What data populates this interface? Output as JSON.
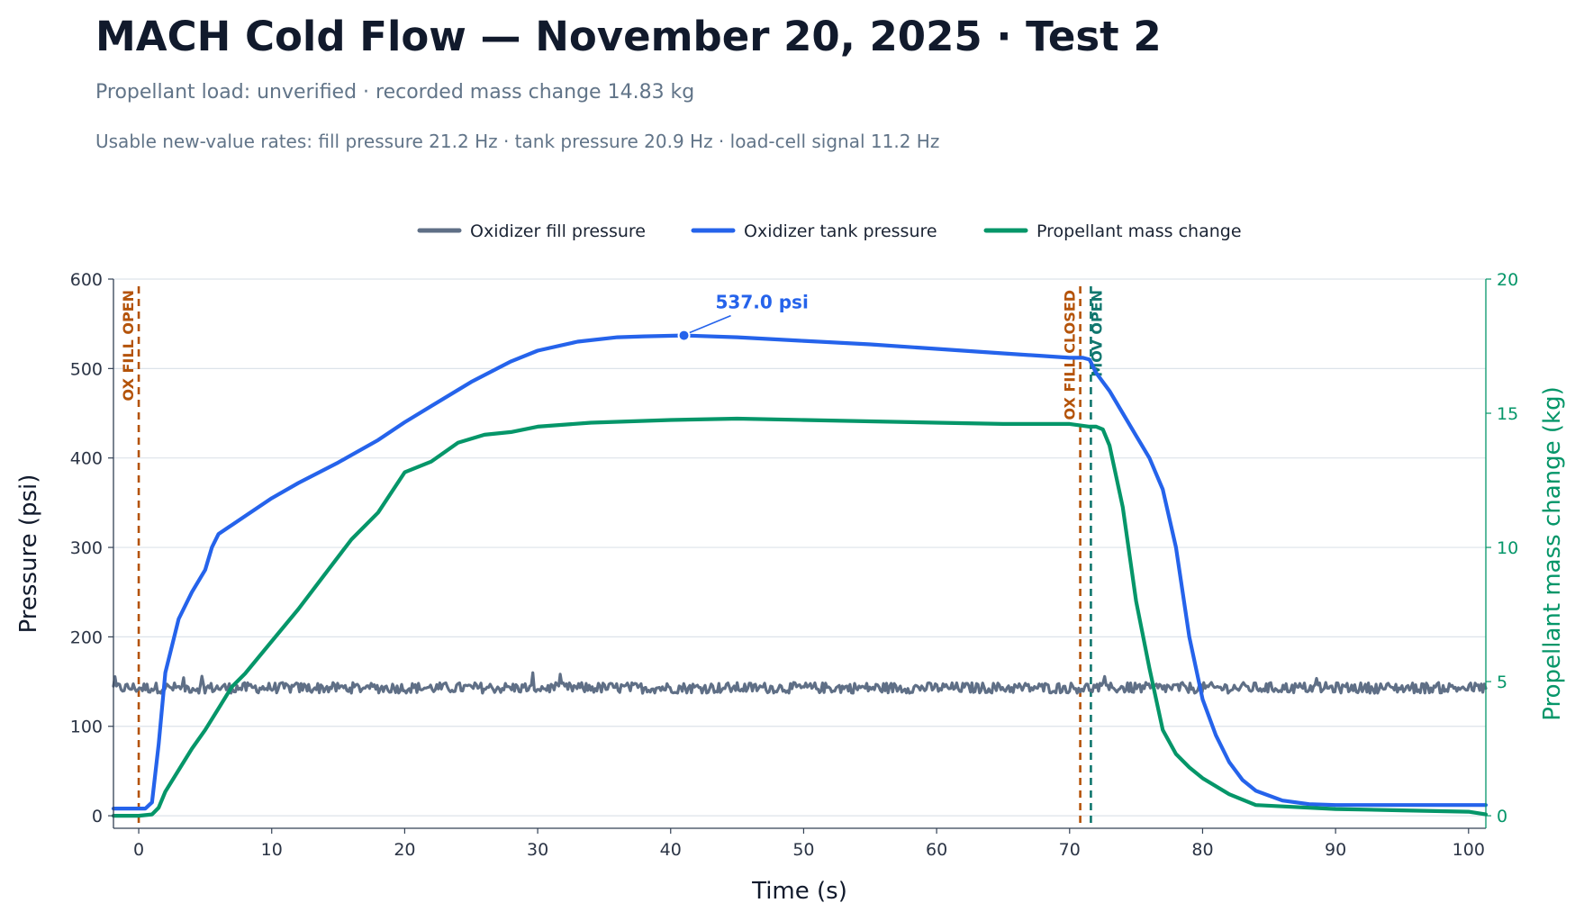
{
  "header": {
    "title": "MACH Cold Flow — November 20, 2025 · Test 2",
    "subtitle": "Propellant load: unverified · recorded mass change 14.83 kg",
    "rates": "Usable new-value rates: fill pressure 21.2 Hz · tank pressure 20.9 Hz · load-cell signal 11.2 Hz"
  },
  "colors": {
    "fill_pressure": "#5f6f86",
    "tank_pressure": "#2563eb",
    "mass_change": "#059669",
    "ox_fill_marker": "#b45309",
    "mov_marker": "#0f766e",
    "grid": "#dde3ea",
    "axis": "#334155"
  },
  "chart_data": {
    "type": "line",
    "xlabel": "Time (s)",
    "ylabel": "Pressure (psi)",
    "y2label": "Propellant mass change (kg)",
    "xlim": [
      -1.9,
      101.3
    ],
    "ylim": [
      -14,
      600
    ],
    "y2lim": [
      -0.467,
      20
    ],
    "xticks": [
      0,
      10,
      20,
      30,
      40,
      50,
      60,
      70,
      80,
      90,
      100
    ],
    "yticks": [
      0,
      100,
      200,
      300,
      400,
      500,
      600
    ],
    "y2ticks": [
      0,
      5,
      10,
      15,
      20
    ],
    "grid": true,
    "legend_position": "top-center",
    "series": [
      {
        "name": "Oxidizer fill pressure",
        "axis": "left",
        "style": "noisy",
        "mean": 143,
        "noise_amplitude": 6,
        "x": [
          -1.9,
          101.3
        ],
        "y": [
          143,
          143
        ]
      },
      {
        "name": "Oxidizer tank pressure",
        "axis": "left",
        "x": [
          -1.9,
          0.5,
          1.0,
          1.5,
          2.0,
          3.0,
          4.0,
          5.0,
          5.5,
          6.0,
          7.0,
          8.0,
          10.0,
          12.0,
          15.0,
          18.0,
          20.0,
          22.0,
          25.0,
          28.0,
          30.0,
          33.0,
          36.0,
          38.0,
          41.0,
          45.0,
          50.0,
          55.0,
          60.0,
          65.0,
          68.0,
          70.0,
          71.0,
          71.5,
          72.0,
          73.0,
          74.0,
          75.0,
          76.0,
          77.0,
          78.0,
          79.0,
          80.0,
          81.0,
          82.0,
          83.0,
          84.0,
          86.0,
          88.0,
          90.0,
          95.0,
          101.3
        ],
        "y": [
          8,
          8,
          15,
          80,
          160,
          220,
          250,
          275,
          300,
          315,
          325,
          335,
          355,
          372,
          395,
          420,
          440,
          458,
          485,
          508,
          520,
          530,
          535,
          536,
          537,
          535,
          531,
          527,
          522,
          517,
          514,
          512,
          512,
          510,
          495,
          475,
          450,
          425,
          400,
          365,
          300,
          200,
          130,
          90,
          60,
          40,
          28,
          17,
          13,
          12,
          12,
          12
        ]
      },
      {
        "name": "Propellant mass change",
        "axis": "right",
        "x": [
          -1.9,
          0.0,
          1.0,
          1.5,
          2.0,
          3.0,
          4.0,
          5.0,
          6.0,
          7.0,
          8.0,
          10.0,
          12.0,
          14.0,
          16.0,
          18.0,
          20.0,
          22.0,
          24.0,
          26.0,
          28.0,
          30.0,
          34.0,
          40.0,
          45.0,
          50.0,
          55.0,
          60.0,
          65.0,
          70.0,
          71.5,
          72.0,
          72.5,
          73.0,
          74.0,
          75.0,
          76.0,
          77.0,
          78.0,
          79.0,
          80.0,
          82.0,
          84.0,
          86.0,
          90.0,
          95.0,
          100.0,
          101.3
        ],
        "y": [
          0,
          0,
          0.05,
          0.3,
          0.9,
          1.7,
          2.5,
          3.2,
          4.0,
          4.8,
          5.3,
          6.5,
          7.7,
          9.0,
          10.3,
          11.3,
          12.8,
          13.2,
          13.9,
          14.2,
          14.3,
          14.5,
          14.65,
          14.75,
          14.8,
          14.75,
          14.7,
          14.65,
          14.6,
          14.6,
          14.5,
          14.5,
          14.4,
          13.8,
          11.5,
          8.0,
          5.5,
          3.2,
          2.3,
          1.8,
          1.4,
          0.8,
          0.4,
          0.35,
          0.25,
          0.2,
          0.15,
          0.05
        ]
      }
    ],
    "events": [
      {
        "label": "OX FILL OPEN",
        "x": 0.0,
        "color": "ox_fill_marker"
      },
      {
        "label": "OX FILL CLOSED",
        "x": 70.8,
        "color": "ox_fill_marker"
      },
      {
        "label": "MOV OPEN",
        "x": 71.6,
        "color": "mov_marker"
      }
    ],
    "annotation": {
      "text": "537.0 psi",
      "x": 41.0,
      "y": 537.0
    }
  }
}
